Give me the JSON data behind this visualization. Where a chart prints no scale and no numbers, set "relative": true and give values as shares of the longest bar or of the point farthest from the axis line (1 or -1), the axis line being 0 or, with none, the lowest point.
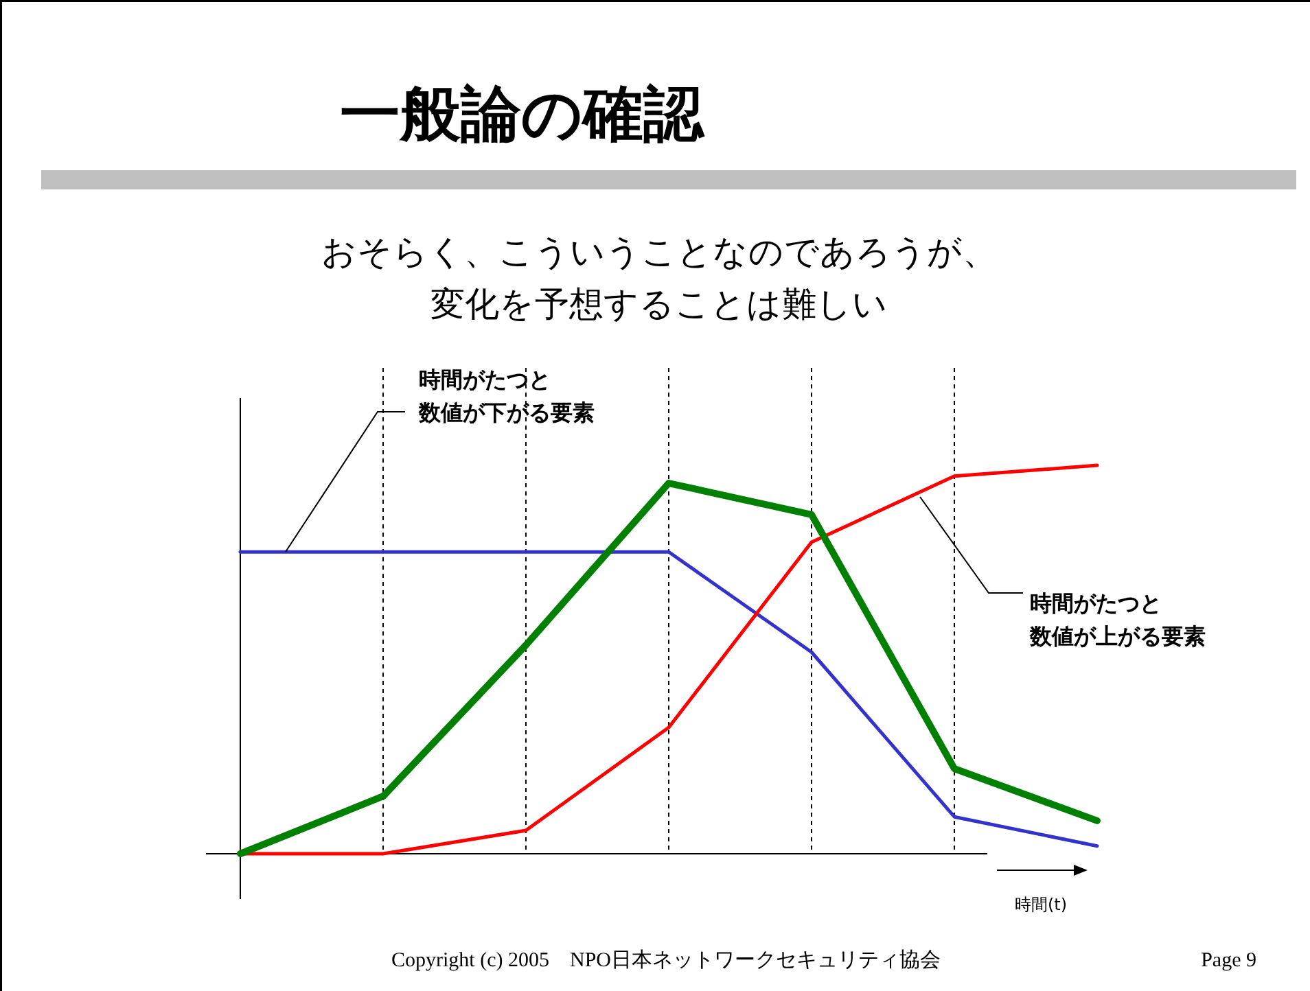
{
  "chart_data": {
    "type": "line",
    "title": "一般論の確認",
    "subtitle": "おそらく、こういうことなのであろうが、変化を予想することは難しい",
    "xlabel": "時間(t)",
    "relative": true,
    "grid": "x",
    "categories": [
      null,
      null,
      null,
      null,
      null,
      null,
      null
    ],
    "series": [
      {
        "color": "#3333cc",
        "values": [
          0.777,
          0.777,
          0.777,
          0.777,
          0.519,
          0.095,
          0.02
        ]
      },
      {
        "color": "#ff0000",
        "values": [
          0,
          0,
          0.06,
          0.325,
          0.802,
          0.972,
          1.0
        ]
      },
      {
        "color": "#008000",
        "values": [
          0,
          0.148,
          0.537,
          0.954,
          0.873,
          0.219,
          0.085
        ]
      }
    ],
    "annotations": [
      "時間がたつと数値が下がる要素",
      "時間がたつと数値が上がる要素",
      "Copyright (c) 2005　NPO日本ネットワークセキュリティ協会",
      "Page 9"
    ]
  }
}
